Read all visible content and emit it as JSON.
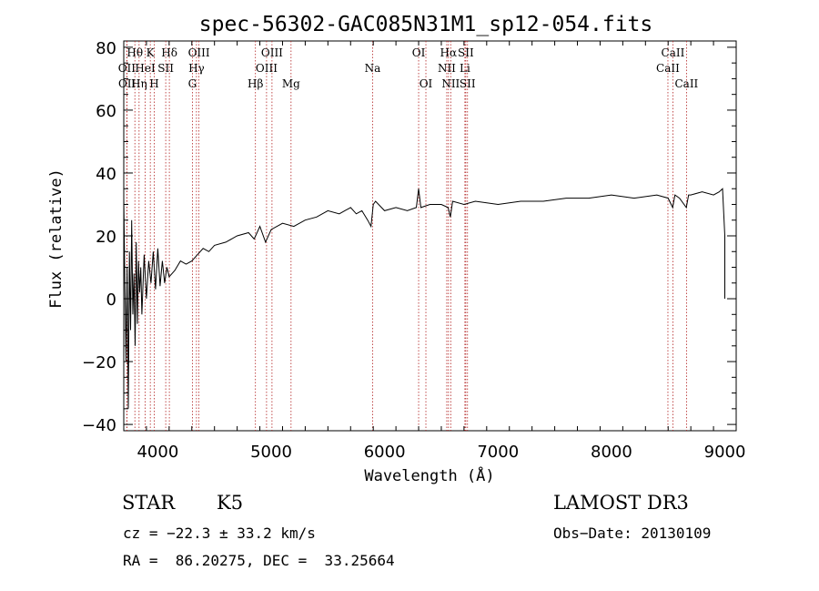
{
  "chart_data": {
    "type": "line",
    "title": "spec-56302-GAC085N31M1_sp12-054.fits",
    "xlabel": "Wavelength (Å)",
    "ylabel": "Flux (relative)",
    "xlim": [
      3700,
      9100
    ],
    "ylim": [
      -42,
      82
    ],
    "xticks": [
      4000,
      5000,
      6000,
      7000,
      8000,
      9000
    ],
    "xtick_labels": [
      "4000",
      "5000",
      "6000",
      "7000",
      "8000",
      "9000"
    ],
    "yticks": [
      -40,
      -20,
      0,
      20,
      40,
      60,
      80
    ],
    "ytick_labels": [
      "−40",
      "−20",
      "0",
      "20",
      "40",
      "60",
      "80"
    ],
    "spectral_lines": [
      {
        "label": "Hθ",
        "wl": 3798,
        "row": 1
      },
      {
        "label": "Hη",
        "wl": 3835,
        "row": 3
      },
      {
        "label": "OII",
        "wl": 3727,
        "row": 2
      },
      {
        "label": "OII",
        "wl": 3729,
        "row": 3
      },
      {
        "label": "HeI",
        "wl": 3889,
        "row": 2
      },
      {
        "label": "K",
        "wl": 3934,
        "row": 1
      },
      {
        "label": "H",
        "wl": 3969,
        "row": 3
      },
      {
        "label": "SII",
        "wl": 4070,
        "row": 2
      },
      {
        "label": "Hδ",
        "wl": 4102,
        "row": 1
      },
      {
        "label": "G",
        "wl": 4305,
        "row": 3
      },
      {
        "label": "Hγ",
        "wl": 4341,
        "row": 2
      },
      {
        "label": "OIII",
        "wl": 4363,
        "row": 1
      },
      {
        "label": "Hβ",
        "wl": 4861,
        "row": 3
      },
      {
        "label": "OIII",
        "wl": 4959,
        "row": 2
      },
      {
        "label": "OIII",
        "wl": 5007,
        "row": 1
      },
      {
        "label": "Mg",
        "wl": 5175,
        "row": 3
      },
      {
        "label": "Na",
        "wl": 5894,
        "row": 2
      },
      {
        "label": "OI",
        "wl": 6300,
        "row": 1
      },
      {
        "label": "OI",
        "wl": 6364,
        "row": 3
      },
      {
        "label": "NII",
        "wl": 6548,
        "row": 2
      },
      {
        "label": "Hα",
        "wl": 6563,
        "row": 1
      },
      {
        "label": "NII",
        "wl": 6583,
        "row": 3
      },
      {
        "label": "Li",
        "wl": 6708,
        "row": 2
      },
      {
        "label": "SII",
        "wl": 6716,
        "row": 1
      },
      {
        "label": "SII",
        "wl": 6731,
        "row": 3
      },
      {
        "label": "CaII",
        "wl": 8498,
        "row": 2
      },
      {
        "label": "CaII",
        "wl": 8542,
        "row": 1
      },
      {
        "label": "CaII",
        "wl": 8662,
        "row": 3
      }
    ],
    "series": [
      {
        "name": "flux",
        "x": [
          3700,
          3710,
          3720,
          3730,
          3740,
          3750,
          3760,
          3770,
          3780,
          3790,
          3800,
          3810,
          3820,
          3830,
          3840,
          3850,
          3860,
          3880,
          3900,
          3920,
          3940,
          3960,
          3980,
          4000,
          4020,
          4040,
          4060,
          4080,
          4100,
          4150,
          4200,
          4250,
          4300,
          4350,
          4400,
          4450,
          4500,
          4600,
          4700,
          4800,
          4850,
          4900,
          4950,
          5000,
          5100,
          5200,
          5300,
          5400,
          5500,
          5600,
          5700,
          5750,
          5800,
          5850,
          5880,
          5900,
          5920,
          6000,
          6100,
          6200,
          6280,
          6300,
          6320,
          6400,
          6500,
          6560,
          6580,
          6600,
          6700,
          6800,
          7000,
          7200,
          7400,
          7600,
          7800,
          8000,
          8200,
          8400,
          8500,
          8540,
          8560,
          8600,
          8660,
          8680,
          8700,
          8800,
          8900,
          8950,
          8980,
          9000,
          9000
        ],
        "y": [
          32,
          5,
          -20,
          10,
          -35,
          15,
          -10,
          25,
          -5,
          8,
          -15,
          18,
          -8,
          12,
          2,
          10,
          -5,
          14,
          0,
          12,
          5,
          15,
          3,
          16,
          4,
          12,
          5,
          10,
          7,
          9,
          12,
          11,
          12,
          14,
          16,
          15,
          17,
          18,
          20,
          21,
          19,
          23,
          18,
          22,
          24,
          23,
          25,
          26,
          28,
          27,
          29,
          27,
          28,
          25,
          23,
          30,
          31,
          28,
          29,
          28,
          29,
          35,
          29,
          30,
          30,
          29,
          26,
          31,
          30,
          31,
          30,
          31,
          31,
          32,
          32,
          33,
          32,
          33,
          32,
          29,
          33,
          32,
          29,
          33,
          33,
          34,
          33,
          34,
          35,
          20,
          0
        ]
      }
    ]
  },
  "info": {
    "object_type": "STAR",
    "subclass": "K5",
    "survey": "LAMOST DR3",
    "cz_line": "cz = −22.3 ± 33.2 km/s",
    "obs_date": "Obs−Date: 20130109",
    "coords": "RA =  86.20275, DEC =  33.25664"
  }
}
